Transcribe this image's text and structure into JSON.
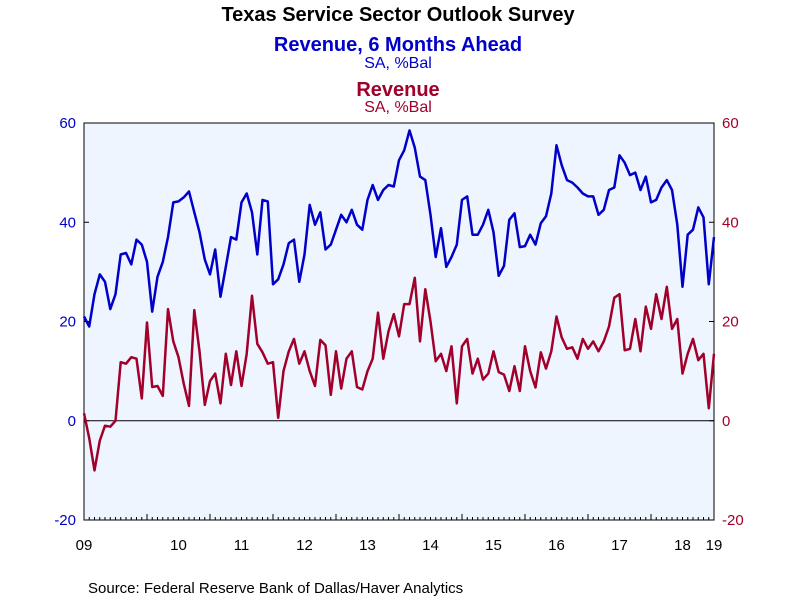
{
  "chart_data": {
    "type": "line",
    "title": "Texas Service Sector Outlook Survey",
    "x_categories": [
      "09",
      "10",
      "11",
      "12",
      "13",
      "14",
      "15",
      "16",
      "17",
      "18",
      "19"
    ],
    "y_left_ticks": [
      "60",
      "40",
      "20",
      "0",
      "-20"
    ],
    "y_right_ticks": [
      "60",
      "40",
      "20",
      "0",
      "-20"
    ],
    "ylim": [
      -20,
      60
    ],
    "grid": false,
    "zero_line": true,
    "source": "Source:  Federal Reserve Bank of Dallas/Haver Analytics",
    "series": [
      {
        "name": "Revenue, 6 Months Ahead",
        "subtitle": "SA, %Bal",
        "color": "#0000c8",
        "axis": "left",
        "x_start": 2009.0,
        "x_step": 0.08333,
        "values": [
          21,
          19,
          25.5,
          29.5,
          28,
          22.5,
          25.5,
          33.5,
          33.8,
          31.5,
          36.5,
          35.5,
          32,
          22,
          29,
          32,
          37,
          44,
          44.2,
          45,
          46.2,
          42,
          38,
          32.5,
          29.5,
          34.5,
          25,
          31,
          37,
          36.5,
          44,
          45.8,
          42,
          33.5,
          44.5,
          44.2,
          27.5,
          28.5,
          31.5,
          35.8,
          36.5,
          28,
          33.5,
          43.5,
          39.5,
          42,
          34.5,
          35.5,
          38.5,
          41.5,
          40,
          42.5,
          39.5,
          38.5,
          44.5,
          47.5,
          44.5,
          46.5,
          47.5,
          47.2,
          52.5,
          54.5,
          58.5,
          55,
          49.2,
          48.5,
          41.5,
          33,
          38.8,
          31,
          33,
          35.5,
          44.5,
          45.2,
          37.5,
          37.5,
          39.5,
          42.5,
          38,
          29.2,
          31.2,
          40.5,
          41.8,
          35,
          35.2,
          37.5,
          35.5,
          39.8,
          41.2,
          45.8,
          55.5,
          51.5,
          48.5,
          48,
          47,
          45.8,
          45.2,
          45.2,
          41.5,
          42.5,
          46.5,
          47,
          53.5,
          52,
          49.5,
          50,
          46.5,
          49.2,
          44,
          44.5,
          47,
          48.5,
          46.5,
          39.5,
          27,
          37.5,
          38.5,
          43,
          41,
          27.5,
          37
        ]
      },
      {
        "name": "Revenue",
        "subtitle": "SA, %Bal",
        "color": "#a0002a",
        "axis": "right",
        "x_start": 2009.0,
        "x_step": 0.08333,
        "values": [
          1.5,
          -3.5,
          -10,
          -4,
          -1,
          -1.2,
          0,
          11.8,
          11.5,
          12.8,
          12.5,
          4.5,
          19.8,
          6.8,
          7,
          5,
          22.5,
          16,
          12.8,
          7.5,
          3,
          22.3,
          14,
          3.2,
          8,
          9.5,
          3.5,
          13.5,
          7.2,
          14,
          7,
          13.5,
          25.2,
          15.5,
          13.8,
          11.5,
          11.8,
          0.6,
          10,
          14,
          16.5,
          11.5,
          14,
          10,
          7,
          16.3,
          15.2,
          5.2,
          14,
          6.5,
          12.5,
          14,
          6.8,
          6.3,
          10,
          12.5,
          21.8,
          12.5,
          18,
          21.5,
          17,
          23.5,
          23.5,
          28.8,
          16,
          26.5,
          20,
          12,
          13.5,
          10,
          15,
          3.5,
          15,
          16.5,
          9.5,
          12.5,
          8.3,
          9.5,
          14,
          9.8,
          9.3,
          6,
          11,
          6,
          15,
          10,
          6.7,
          13.8,
          10.5,
          14,
          21,
          16.8,
          14.5,
          14.8,
          12.5,
          16.5,
          14.5,
          16,
          14,
          16,
          19,
          24.8,
          25.5,
          14.2,
          14.5,
          20.5,
          14,
          23,
          18.5,
          25.5,
          20.5,
          27,
          18.5,
          20.5,
          9.5,
          13.5,
          16.5,
          12.2,
          13.5,
          2.5,
          13.5
        ]
      }
    ]
  }
}
